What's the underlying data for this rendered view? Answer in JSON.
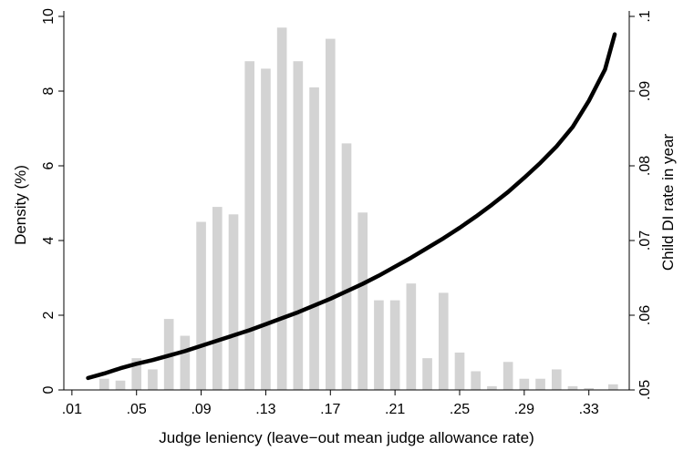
{
  "chart_data": {
    "type": "bar",
    "overlay": "line",
    "title": "",
    "xlabel": "Judge leniency (leave−out mean judge allowance rate)",
    "ylabel_left": "Density (%)",
    "ylabel_right": "Child DI rate in year",
    "xlim": [
      0.005,
      0.355
    ],
    "ylim_left": [
      0,
      10
    ],
    "ylim_right": [
      0.05,
      0.1
    ],
    "x_ticks": [
      {
        "value": 0.01,
        "label": ".01"
      },
      {
        "value": 0.05,
        "label": ".05"
      },
      {
        "value": 0.09,
        "label": ".09"
      },
      {
        "value": 0.13,
        "label": ".13"
      },
      {
        "value": 0.17,
        "label": ".17"
      },
      {
        "value": 0.21,
        "label": ".21"
      },
      {
        "value": 0.25,
        "label": ".25"
      },
      {
        "value": 0.29,
        "label": ".29"
      },
      {
        "value": 0.33,
        "label": ".33"
      }
    ],
    "y_ticks_left": [
      {
        "value": 0,
        "label": "0"
      },
      {
        "value": 2,
        "label": "2"
      },
      {
        "value": 4,
        "label": "4"
      },
      {
        "value": 6,
        "label": "6"
      },
      {
        "value": 8,
        "label": "8"
      },
      {
        "value": 10,
        "label": "10"
      }
    ],
    "y_ticks_right": [
      {
        "value": 0.05,
        "label": ".05"
      },
      {
        "value": 0.06,
        "label": ".06"
      },
      {
        "value": 0.07,
        "label": ".07"
      },
      {
        "value": 0.08,
        "label": ".08"
      },
      {
        "value": 0.09,
        "label": ".09"
      },
      {
        "value": 0.1,
        "label": ".1"
      }
    ],
    "bar_width": 0.006,
    "histogram": {
      "x": [
        0.03,
        0.04,
        0.05,
        0.06,
        0.07,
        0.08,
        0.09,
        0.1,
        0.11,
        0.12,
        0.13,
        0.14,
        0.15,
        0.16,
        0.17,
        0.18,
        0.19,
        0.2,
        0.21,
        0.22,
        0.23,
        0.24,
        0.25,
        0.26,
        0.27,
        0.28,
        0.29,
        0.3,
        0.31,
        0.32,
        0.33,
        0.345
      ],
      "density": [
        0.3,
        0.25,
        0.85,
        0.55,
        1.9,
        1.45,
        4.5,
        4.9,
        4.7,
        8.8,
        8.6,
        9.7,
        8.8,
        8.1,
        9.4,
        6.6,
        4.75,
        2.4,
        2.4,
        2.85,
        0.85,
        2.6,
        1.0,
        0.5,
        0.1,
        0.75,
        0.3,
        0.3,
        0.55,
        0.1,
        0.05,
        0.15
      ]
    },
    "curve": {
      "x": [
        0.02,
        0.03,
        0.04,
        0.05,
        0.06,
        0.07,
        0.08,
        0.09,
        0.1,
        0.11,
        0.12,
        0.13,
        0.14,
        0.15,
        0.16,
        0.17,
        0.18,
        0.19,
        0.2,
        0.21,
        0.22,
        0.23,
        0.24,
        0.25,
        0.26,
        0.27,
        0.28,
        0.29,
        0.3,
        0.31,
        0.32,
        0.33,
        0.34,
        0.346
      ],
      "y": [
        0.0516,
        0.0522,
        0.0529,
        0.0535,
        0.054,
        0.0546,
        0.0552,
        0.0559,
        0.0566,
        0.0573,
        0.058,
        0.0588,
        0.0596,
        0.0604,
        0.0613,
        0.0622,
        0.0632,
        0.0642,
        0.0653,
        0.0665,
        0.0677,
        0.069,
        0.0703,
        0.0717,
        0.0732,
        0.0748,
        0.0765,
        0.0784,
        0.0804,
        0.0826,
        0.0852,
        0.0887,
        0.0929,
        0.0976
      ]
    },
    "colors": {
      "bars": "#d3d3d3",
      "curve": "#000000",
      "axis": "#000000",
      "background": "#ffffff"
    },
    "grid": false,
    "legend": "none"
  }
}
